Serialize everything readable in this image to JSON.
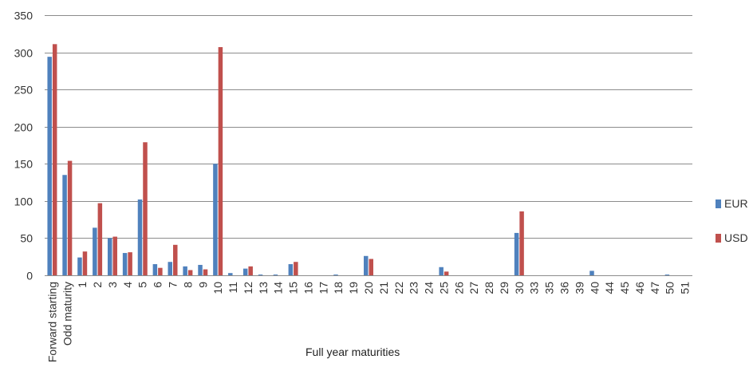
{
  "chart_data": {
    "type": "bar",
    "title": "",
    "xlabel": "Full year maturities",
    "ylabel": "",
    "ylim": [
      0,
      350
    ],
    "yticks": [
      0,
      50,
      100,
      150,
      200,
      250,
      300,
      350
    ],
    "grid": true,
    "legend_position": "right",
    "categories": [
      "Forward starting",
      "Odd maturity",
      "1",
      "2",
      "3",
      "4",
      "5",
      "6",
      "7",
      "8",
      "9",
      "10",
      "11",
      "12",
      "13",
      "14",
      "15",
      "16",
      "17",
      "18",
      "19",
      "20",
      "21",
      "22",
      "23",
      "24",
      "25",
      "26",
      "27",
      "28",
      "29",
      "30",
      "33",
      "35",
      "36",
      "39",
      "40",
      "44",
      "45",
      "46",
      "47",
      "50",
      "51"
    ],
    "series": [
      {
        "name": "EUR",
        "color": "#4f81bd",
        "values": [
          294,
          135,
          24,
          64,
          50,
          30,
          102,
          15,
          18,
          12,
          14,
          150,
          3,
          9,
          1,
          1,
          15,
          0,
          0,
          1,
          0,
          26,
          0,
          0,
          0,
          0,
          11,
          0,
          0,
          0,
          0,
          57,
          0,
          0,
          0,
          0,
          6,
          0,
          0,
          0,
          0,
          1,
          0
        ]
      },
      {
        "name": "USD",
        "color": "#c0504d",
        "values": [
          311,
          154,
          32,
          97,
          52,
          31,
          179,
          10,
          41,
          7,
          8,
          307,
          0,
          12,
          0,
          0,
          18,
          0,
          0,
          0,
          0,
          22,
          0,
          0,
          0,
          0,
          5,
          0,
          0,
          0,
          0,
          86,
          0,
          0,
          0,
          0,
          0,
          0,
          0,
          0,
          0,
          0,
          0
        ]
      }
    ]
  },
  "legend": {
    "eur_label": "EUR",
    "usd_label": "USD"
  }
}
